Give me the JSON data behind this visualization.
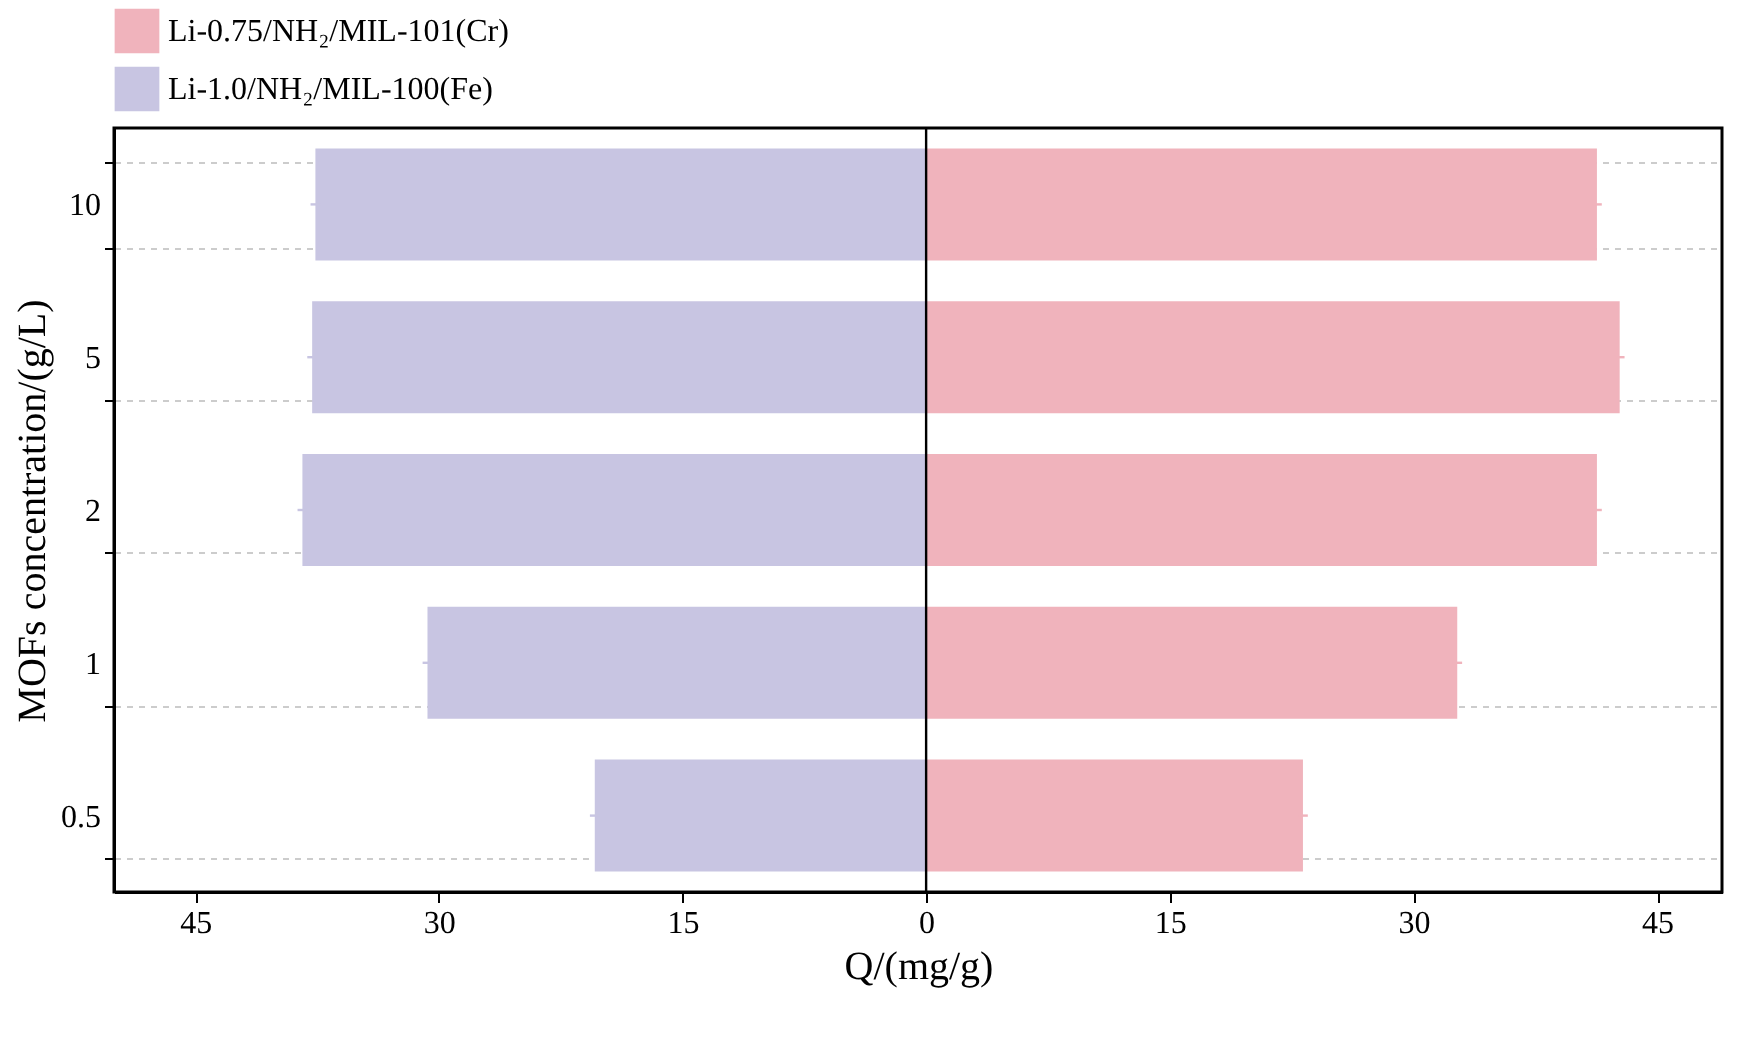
{
  "chart_data": {
    "type": "bar",
    "orientation": "horizontal",
    "stacked": true,
    "xlabel": "Q/(mg/g)",
    "ylabel": "MOFs concentration/(g/L)",
    "categories": [
      "10",
      "5",
      "2",
      "1",
      "0.5"
    ],
    "series": [
      {
        "name": "Li-0.75/NH₂/MIL-101(Cr)",
        "color": "#f0b3bc",
        "values": [
          41.3,
          42.7,
          41.3,
          32.7,
          23.2
        ],
        "errors": [
          0.3,
          0.3,
          0.3,
          0.3,
          0.3
        ]
      },
      {
        "name": "Li-1.0/NH₂/MIL-100(Fe)",
        "color": "#c8c5e2",
        "values": [
          -37.6,
          -37.8,
          -38.4,
          -30.7,
          -20.4
        ],
        "errors": [
          0.3,
          0.3,
          0.3,
          0.3,
          0.3
        ]
      }
    ],
    "xlim": [
      -50,
      49
    ],
    "xticks": [
      {
        "value": -45,
        "label": "45"
      },
      {
        "value": -30,
        "label": "30"
      },
      {
        "value": -15,
        "label": "15"
      },
      0,
      15,
      30,
      45
    ],
    "ref_lines": [
      {
        "axis": "x",
        "value": 0,
        "color": "#000000"
      }
    ],
    "grid": "y",
    "legend": "top left"
  }
}
